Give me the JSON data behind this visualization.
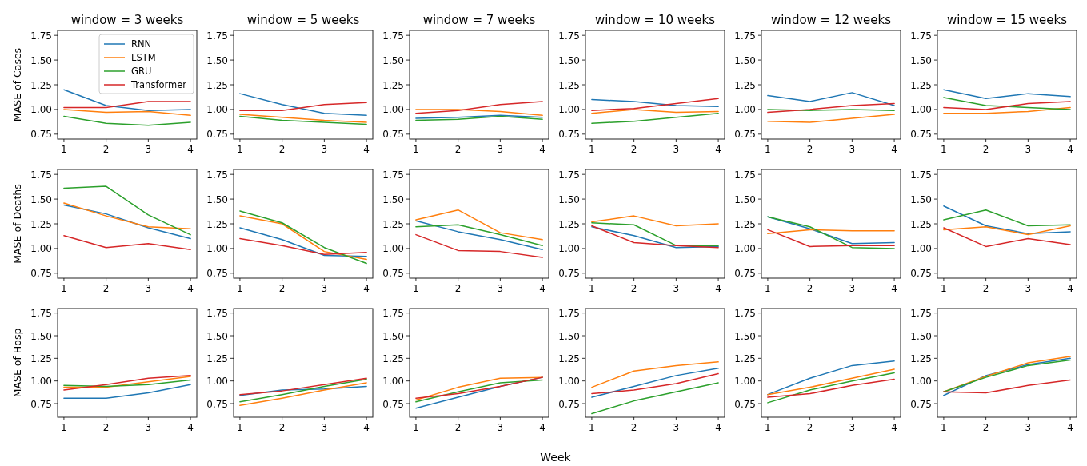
{
  "chart_data": [
    {
      "type": "line",
      "title": "window = 3 weeks",
      "ylabel": "MASE of Cases",
      "legend": "top right",
      "x": [
        1,
        2,
        3,
        4
      ],
      "xlim": [
        0.85,
        4.15
      ],
      "xticks": [
        1,
        2,
        3,
        4
      ],
      "ylim": [
        0.7,
        1.8
      ],
      "yticks": [
        {
          "value": 0.75,
          "label": "0.75"
        },
        {
          "value": 1,
          "label": "1.00"
        },
        {
          "value": 1.25,
          "label": "1.25"
        },
        {
          "value": 1.5,
          "label": "1.50"
        },
        {
          "value": 1.75,
          "label": "1.75"
        }
      ],
      "series": [
        {
          "name": "RNN",
          "color": "#1f77b4",
          "values": [
            1.2,
            1.04,
            0.99,
            1.0
          ]
        },
        {
          "name": "LSTM",
          "color": "#ff7f0e",
          "values": [
            1.0,
            0.97,
            0.98,
            0.94
          ]
        },
        {
          "name": "GRU",
          "color": "#2ca02c",
          "values": [
            0.93,
            0.86,
            0.84,
            0.87
          ]
        },
        {
          "name": "Transformer",
          "color": "#d62728",
          "values": [
            1.02,
            1.02,
            1.08,
            1.08
          ]
        }
      ]
    },
    {
      "type": "line",
      "title": "window = 5 weeks",
      "x": [
        1,
        2,
        3,
        4
      ],
      "xlim": [
        0.85,
        4.15
      ],
      "xticks": [
        1,
        2,
        3,
        4
      ],
      "ylim": [
        0.7,
        1.8
      ],
      "yticks": [
        {
          "value": 0.75,
          "label": "0.75"
        },
        {
          "value": 1,
          "label": "1.00"
        },
        {
          "value": 1.25,
          "label": "1.25"
        },
        {
          "value": 1.5,
          "label": "1.50"
        },
        {
          "value": 1.75,
          "label": "1.75"
        }
      ],
      "series": [
        {
          "color": "#1f77b4",
          "values": [
            1.16,
            1.05,
            0.96,
            0.94
          ]
        },
        {
          "color": "#ff7f0e",
          "values": [
            0.95,
            0.92,
            0.89,
            0.87
          ]
        },
        {
          "color": "#2ca02c",
          "values": [
            0.93,
            0.89,
            0.87,
            0.85
          ]
        },
        {
          "color": "#d62728",
          "values": [
            0.99,
            0.99,
            1.05,
            1.07
          ]
        }
      ]
    },
    {
      "type": "line",
      "title": "window = 7 weeks",
      "x": [
        1,
        2,
        3,
        4
      ],
      "xlim": [
        0.85,
        4.15
      ],
      "xticks": [
        1,
        2,
        3,
        4
      ],
      "ylim": [
        0.7,
        1.8
      ],
      "yticks": [
        {
          "value": 0.75,
          "label": "0.75"
        },
        {
          "value": 1,
          "label": "1.00"
        },
        {
          "value": 1.25,
          "label": "1.25"
        },
        {
          "value": 1.5,
          "label": "1.50"
        },
        {
          "value": 1.75,
          "label": "1.75"
        }
      ],
      "series": [
        {
          "color": "#1f77b4",
          "values": [
            0.91,
            0.92,
            0.94,
            0.92
          ]
        },
        {
          "color": "#ff7f0e",
          "values": [
            1.0,
            1.0,
            0.98,
            0.94
          ]
        },
        {
          "color": "#2ca02c",
          "values": [
            0.89,
            0.9,
            0.93,
            0.9
          ]
        },
        {
          "color": "#d62728",
          "values": [
            0.96,
            0.99,
            1.05,
            1.08
          ]
        }
      ]
    },
    {
      "type": "line",
      "title": "window = 10 weeks",
      "x": [
        1,
        2,
        3,
        4
      ],
      "xlim": [
        0.85,
        4.15
      ],
      "xticks": [
        1,
        2,
        3,
        4
      ],
      "ylim": [
        0.7,
        1.8
      ],
      "yticks": [
        {
          "value": 0.75,
          "label": "0.75"
        },
        {
          "value": 1,
          "label": "1.00"
        },
        {
          "value": 1.25,
          "label": "1.25"
        },
        {
          "value": 1.5,
          "label": "1.50"
        },
        {
          "value": 1.75,
          "label": "1.75"
        }
      ],
      "series": [
        {
          "color": "#1f77b4",
          "values": [
            1.1,
            1.08,
            1.04,
            1.03
          ]
        },
        {
          "color": "#ff7f0e",
          "values": [
            0.96,
            1.0,
            0.97,
            0.98
          ]
        },
        {
          "color": "#2ca02c",
          "values": [
            0.86,
            0.88,
            0.92,
            0.96
          ]
        },
        {
          "color": "#d62728",
          "values": [
            0.99,
            1.01,
            1.06,
            1.11
          ]
        }
      ]
    },
    {
      "type": "line",
      "title": "window = 12 weeks",
      "x": [
        1,
        2,
        3,
        4
      ],
      "xlim": [
        0.85,
        4.15
      ],
      "xticks": [
        1,
        2,
        3,
        4
      ],
      "ylim": [
        0.7,
        1.8
      ],
      "yticks": [
        {
          "value": 0.75,
          "label": "0.75"
        },
        {
          "value": 1,
          "label": "1.00"
        },
        {
          "value": 1.25,
          "label": "1.25"
        },
        {
          "value": 1.5,
          "label": "1.50"
        },
        {
          "value": 1.75,
          "label": "1.75"
        }
      ],
      "series": [
        {
          "color": "#1f77b4",
          "values": [
            1.14,
            1.08,
            1.17,
            1.04
          ]
        },
        {
          "color": "#ff7f0e",
          "values": [
            0.88,
            0.87,
            0.91,
            0.95
          ]
        },
        {
          "color": "#2ca02c",
          "values": [
            1.0,
            0.99,
            1.0,
            0.99
          ]
        },
        {
          "color": "#d62728",
          "values": [
            0.97,
            1.0,
            1.04,
            1.06
          ]
        }
      ]
    },
    {
      "type": "line",
      "title": "window = 15 weeks",
      "x": [
        1,
        2,
        3,
        4
      ],
      "xlim": [
        0.85,
        4.15
      ],
      "xticks": [
        1,
        2,
        3,
        4
      ],
      "ylim": [
        0.7,
        1.8
      ],
      "yticks": [
        {
          "value": 0.75,
          "label": "0.75"
        },
        {
          "value": 1,
          "label": "1.00"
        },
        {
          "value": 1.25,
          "label": "1.25"
        },
        {
          "value": 1.5,
          "label": "1.50"
        },
        {
          "value": 1.75,
          "label": "1.75"
        }
      ],
      "series": [
        {
          "color": "#1f77b4",
          "values": [
            1.2,
            1.11,
            1.16,
            1.13
          ]
        },
        {
          "color": "#ff7f0e",
          "values": [
            0.96,
            0.96,
            0.98,
            1.02
          ]
        },
        {
          "color": "#2ca02c",
          "values": [
            1.12,
            1.04,
            1.02,
            1.0
          ]
        },
        {
          "color": "#d62728",
          "values": [
            1.02,
            1.0,
            1.06,
            1.08
          ]
        }
      ]
    },
    {
      "type": "line",
      "ylabel": "MASE of Deaths",
      "x": [
        1,
        2,
        3,
        4
      ],
      "xlim": [
        0.85,
        4.15
      ],
      "xticks": [
        1,
        2,
        3,
        4
      ],
      "ylim": [
        0.7,
        1.8
      ],
      "yticks": [
        {
          "value": 0.75,
          "label": "0.75"
        },
        {
          "value": 1,
          "label": "1.00"
        },
        {
          "value": 1.25,
          "label": "1.25"
        },
        {
          "value": 1.5,
          "label": "1.50"
        },
        {
          "value": 1.75,
          "label": "1.75"
        }
      ],
      "series": [
        {
          "color": "#1f77b4",
          "values": [
            1.44,
            1.35,
            1.21,
            1.1
          ]
        },
        {
          "color": "#ff7f0e",
          "values": [
            1.46,
            1.33,
            1.22,
            1.2
          ]
        },
        {
          "color": "#2ca02c",
          "values": [
            1.61,
            1.63,
            1.34,
            1.14
          ]
        },
        {
          "color": "#d62728",
          "values": [
            1.13,
            1.01,
            1.05,
            0.99
          ]
        }
      ]
    },
    {
      "type": "line",
      "x": [
        1,
        2,
        3,
        4
      ],
      "xlim": [
        0.85,
        4.15
      ],
      "xticks": [
        1,
        2,
        3,
        4
      ],
      "ylim": [
        0.7,
        1.8
      ],
      "yticks": [
        {
          "value": 0.75,
          "label": "0.75"
        },
        {
          "value": 1,
          "label": "1.00"
        },
        {
          "value": 1.25,
          "label": "1.25"
        },
        {
          "value": 1.5,
          "label": "1.50"
        },
        {
          "value": 1.75,
          "label": "1.75"
        }
      ],
      "series": [
        {
          "color": "#1f77b4",
          "values": [
            1.21,
            1.09,
            0.93,
            0.92
          ]
        },
        {
          "color": "#ff7f0e",
          "values": [
            1.33,
            1.25,
            0.97,
            0.89
          ]
        },
        {
          "color": "#2ca02c",
          "values": [
            1.38,
            1.26,
            1.01,
            0.85
          ]
        },
        {
          "color": "#d62728",
          "values": [
            1.1,
            1.03,
            0.94,
            0.96
          ]
        }
      ]
    },
    {
      "type": "line",
      "x": [
        1,
        2,
        3,
        4
      ],
      "xlim": [
        0.85,
        4.15
      ],
      "xticks": [
        1,
        2,
        3,
        4
      ],
      "ylim": [
        0.7,
        1.8
      ],
      "yticks": [
        {
          "value": 0.75,
          "label": "0.75"
        },
        {
          "value": 1,
          "label": "1.00"
        },
        {
          "value": 1.25,
          "label": "1.25"
        },
        {
          "value": 1.5,
          "label": "1.50"
        },
        {
          "value": 1.75,
          "label": "1.75"
        }
      ],
      "series": [
        {
          "color": "#1f77b4",
          "values": [
            1.28,
            1.17,
            1.09,
            0.99
          ]
        },
        {
          "color": "#ff7f0e",
          "values": [
            1.29,
            1.39,
            1.16,
            1.09
          ]
        },
        {
          "color": "#2ca02c",
          "values": [
            1.22,
            1.24,
            1.14,
            1.03
          ]
        },
        {
          "color": "#d62728",
          "values": [
            1.14,
            0.98,
            0.97,
            0.91
          ]
        }
      ]
    },
    {
      "type": "line",
      "x": [
        1,
        2,
        3,
        4
      ],
      "xlim": [
        0.85,
        4.15
      ],
      "xticks": [
        1,
        2,
        3,
        4
      ],
      "ylim": [
        0.7,
        1.8
      ],
      "yticks": [
        {
          "value": 0.75,
          "label": "0.75"
        },
        {
          "value": 1,
          "label": "1.00"
        },
        {
          "value": 1.25,
          "label": "1.25"
        },
        {
          "value": 1.5,
          "label": "1.50"
        },
        {
          "value": 1.75,
          "label": "1.75"
        }
      ],
      "series": [
        {
          "color": "#1f77b4",
          "values": [
            1.22,
            1.13,
            1.01,
            1.02
          ]
        },
        {
          "color": "#ff7f0e",
          "values": [
            1.27,
            1.33,
            1.23,
            1.25
          ]
        },
        {
          "color": "#2ca02c",
          "values": [
            1.26,
            1.24,
            1.03,
            1.03
          ]
        },
        {
          "color": "#d62728",
          "values": [
            1.23,
            1.06,
            1.03,
            1.01
          ]
        }
      ]
    },
    {
      "type": "line",
      "x": [
        1,
        2,
        3,
        4
      ],
      "xlim": [
        0.85,
        4.15
      ],
      "xticks": [
        1,
        2,
        3,
        4
      ],
      "ylim": [
        0.7,
        1.8
      ],
      "yticks": [
        {
          "value": 0.75,
          "label": "0.75"
        },
        {
          "value": 1,
          "label": "1.00"
        },
        {
          "value": 1.25,
          "label": "1.25"
        },
        {
          "value": 1.5,
          "label": "1.50"
        },
        {
          "value": 1.75,
          "label": "1.75"
        }
      ],
      "series": [
        {
          "color": "#1f77b4",
          "values": [
            1.32,
            1.2,
            1.05,
            1.06
          ]
        },
        {
          "color": "#ff7f0e",
          "values": [
            1.15,
            1.19,
            1.18,
            1.18
          ]
        },
        {
          "color": "#2ca02c",
          "values": [
            1.32,
            1.22,
            1.01,
            1.0
          ]
        },
        {
          "color": "#d62728",
          "values": [
            1.19,
            1.02,
            1.03,
            1.03
          ]
        }
      ]
    },
    {
      "type": "line",
      "x": [
        1,
        2,
        3,
        4
      ],
      "xlim": [
        0.85,
        4.15
      ],
      "xticks": [
        1,
        2,
        3,
        4
      ],
      "ylim": [
        0.7,
        1.8
      ],
      "yticks": [
        {
          "value": 0.75,
          "label": "0.75"
        },
        {
          "value": 1,
          "label": "1.00"
        },
        {
          "value": 1.25,
          "label": "1.25"
        },
        {
          "value": 1.5,
          "label": "1.50"
        },
        {
          "value": 1.75,
          "label": "1.75"
        }
      ],
      "series": [
        {
          "color": "#1f77b4",
          "values": [
            1.43,
            1.23,
            1.15,
            1.17
          ]
        },
        {
          "color": "#ff7f0e",
          "values": [
            1.19,
            1.22,
            1.14,
            1.23
          ]
        },
        {
          "color": "#2ca02c",
          "values": [
            1.29,
            1.39,
            1.23,
            1.24
          ]
        },
        {
          "color": "#d62728",
          "values": [
            1.21,
            1.02,
            1.1,
            1.04
          ]
        }
      ]
    },
    {
      "type": "line",
      "ylabel": "MASE of Hosp",
      "x": [
        1,
        2,
        3,
        4
      ],
      "xlim": [
        0.85,
        4.15
      ],
      "xticks": [
        1,
        2,
        3,
        4
      ],
      "ylim": [
        0.6,
        1.8
      ],
      "yticks": [
        {
          "value": 0.75,
          "label": "0.75"
        },
        {
          "value": 1,
          "label": "1.00"
        },
        {
          "value": 1.25,
          "label": "1.25"
        },
        {
          "value": 1.5,
          "label": "1.50"
        },
        {
          "value": 1.75,
          "label": "1.75"
        }
      ],
      "series": [
        {
          "color": "#1f77b4",
          "values": [
            0.81,
            0.81,
            0.87,
            0.96
          ]
        },
        {
          "color": "#ff7f0e",
          "values": [
            0.93,
            0.93,
            0.99,
            1.05
          ]
        },
        {
          "color": "#2ca02c",
          "values": [
            0.95,
            0.94,
            0.96,
            1.01
          ]
        },
        {
          "color": "#d62728",
          "values": [
            0.9,
            0.96,
            1.03,
            1.06
          ]
        }
      ]
    },
    {
      "type": "line",
      "x": [
        1,
        2,
        3,
        4
      ],
      "xlim": [
        0.85,
        4.15
      ],
      "xticks": [
        1,
        2,
        3,
        4
      ],
      "ylim": [
        0.6,
        1.8
      ],
      "yticks": [
        {
          "value": 0.75,
          "label": "0.75"
        },
        {
          "value": 1,
          "label": "1.00"
        },
        {
          "value": 1.25,
          "label": "1.25"
        },
        {
          "value": 1.5,
          "label": "1.50"
        },
        {
          "value": 1.75,
          "label": "1.75"
        }
      ],
      "series": [
        {
          "color": "#1f77b4",
          "values": [
            0.84,
            0.9,
            0.91,
            0.94
          ]
        },
        {
          "color": "#ff7f0e",
          "values": [
            0.73,
            0.81,
            0.9,
            0.98
          ]
        },
        {
          "color": "#2ca02c",
          "values": [
            0.77,
            0.85,
            0.94,
            1.02
          ]
        },
        {
          "color": "#d62728",
          "values": [
            0.85,
            0.89,
            0.96,
            1.03
          ]
        }
      ]
    },
    {
      "type": "line",
      "xlabel": "Week",
      "x": [
        1,
        2,
        3,
        4
      ],
      "xlim": [
        0.85,
        4.15
      ],
      "xticks": [
        1,
        2,
        3,
        4
      ],
      "ylim": [
        0.6,
        1.8
      ],
      "yticks": [
        {
          "value": 0.75,
          "label": "0.75"
        },
        {
          "value": 1,
          "label": "1.00"
        },
        {
          "value": 1.25,
          "label": "1.25"
        },
        {
          "value": 1.5,
          "label": "1.50"
        },
        {
          "value": 1.75,
          "label": "1.75"
        }
      ],
      "series": [
        {
          "color": "#1f77b4",
          "values": [
            0.7,
            0.82,
            0.94,
            1.04
          ]
        },
        {
          "color": "#ff7f0e",
          "values": [
            0.79,
            0.93,
            1.03,
            1.04
          ]
        },
        {
          "color": "#2ca02c",
          "values": [
            0.77,
            0.88,
            0.98,
            1.01
          ]
        },
        {
          "color": "#d62728",
          "values": [
            0.81,
            0.86,
            0.94,
            1.04
          ]
        }
      ]
    },
    {
      "type": "line",
      "x": [
        1,
        2,
        3,
        4
      ],
      "xlim": [
        0.85,
        4.15
      ],
      "xticks": [
        1,
        2,
        3,
        4
      ],
      "ylim": [
        0.6,
        1.8
      ],
      "yticks": [
        {
          "value": 0.75,
          "label": "0.75"
        },
        {
          "value": 1,
          "label": "1.00"
        },
        {
          "value": 1.25,
          "label": "1.25"
        },
        {
          "value": 1.5,
          "label": "1.50"
        },
        {
          "value": 1.75,
          "label": "1.75"
        }
      ],
      "series": [
        {
          "color": "#1f77b4",
          "values": [
            0.82,
            0.94,
            1.06,
            1.14
          ]
        },
        {
          "color": "#ff7f0e",
          "values": [
            0.93,
            1.11,
            1.17,
            1.21
          ]
        },
        {
          "color": "#2ca02c",
          "values": [
            0.64,
            0.78,
            0.88,
            0.98
          ]
        },
        {
          "color": "#d62728",
          "values": [
            0.86,
            0.9,
            0.97,
            1.08
          ]
        }
      ]
    },
    {
      "type": "line",
      "x": [
        1,
        2,
        3,
        4
      ],
      "xlim": [
        0.85,
        4.15
      ],
      "xticks": [
        1,
        2,
        3,
        4
      ],
      "ylim": [
        0.6,
        1.8
      ],
      "yticks": [
        {
          "value": 0.75,
          "label": "0.75"
        },
        {
          "value": 1,
          "label": "1.00"
        },
        {
          "value": 1.25,
          "label": "1.25"
        },
        {
          "value": 1.5,
          "label": "1.50"
        },
        {
          "value": 1.75,
          "label": "1.75"
        }
      ],
      "series": [
        {
          "color": "#1f77b4",
          "values": [
            0.85,
            1.03,
            1.17,
            1.22
          ]
        },
        {
          "color": "#ff7f0e",
          "values": [
            0.85,
            0.93,
            1.03,
            1.13
          ]
        },
        {
          "color": "#2ca02c",
          "values": [
            0.76,
            0.9,
            1.0,
            1.09
          ]
        },
        {
          "color": "#d62728",
          "values": [
            0.82,
            0.86,
            0.95,
            1.02
          ]
        }
      ]
    },
    {
      "type": "line",
      "x": [
        1,
        2,
        3,
        4
      ],
      "xlim": [
        0.85,
        4.15
      ],
      "xticks": [
        1,
        2,
        3,
        4
      ],
      "ylim": [
        0.6,
        1.8
      ],
      "yticks": [
        {
          "value": 0.75,
          "label": "0.75"
        },
        {
          "value": 1,
          "label": "1.00"
        },
        {
          "value": 1.25,
          "label": "1.25"
        },
        {
          "value": 1.5,
          "label": "1.50"
        },
        {
          "value": 1.75,
          "label": "1.75"
        }
      ],
      "series": [
        {
          "color": "#1f77b4",
          "values": [
            0.84,
            1.06,
            1.18,
            1.25
          ]
        },
        {
          "color": "#ff7f0e",
          "values": [
            0.88,
            1.05,
            1.2,
            1.27
          ]
        },
        {
          "color": "#2ca02c",
          "values": [
            0.88,
            1.04,
            1.17,
            1.23
          ]
        },
        {
          "color": "#d62728",
          "values": [
            0.88,
            0.87,
            0.95,
            1.01
          ]
        }
      ]
    }
  ]
}
